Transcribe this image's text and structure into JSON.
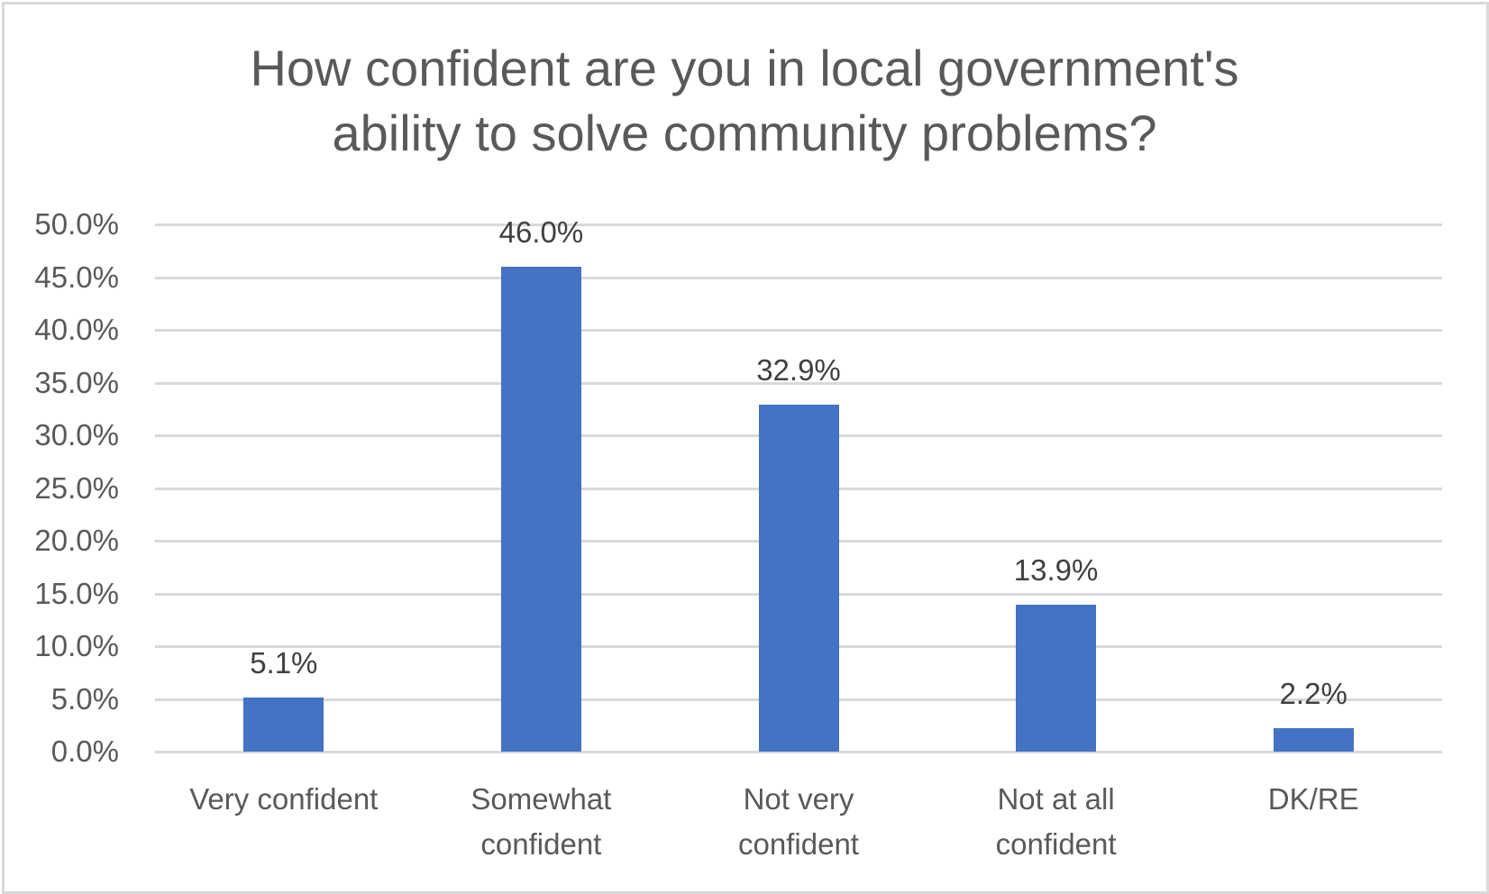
{
  "chart_data": {
    "type": "bar",
    "title": "How confident are you in local government's ability to solve community problems?",
    "title_lines": [
      "How confident are you in local government's",
      "ability to solve community problems?"
    ],
    "categories": [
      "Very confident",
      "Somewhat confident",
      "Not very confident",
      "Not at all confident",
      "DK/RE"
    ],
    "category_lines": [
      [
        "Very confident"
      ],
      [
        "Somewhat",
        "confident"
      ],
      [
        "Not very",
        "confident"
      ],
      [
        "Not at all",
        "confident"
      ],
      [
        "DK/RE"
      ]
    ],
    "values": [
      5.1,
      46.0,
      32.9,
      13.9,
      2.2
    ],
    "data_labels": [
      "5.1%",
      "46.0%",
      "32.9%",
      "13.9%",
      "2.2%"
    ],
    "xlabel": "",
    "ylabel": "",
    "ylim": [
      0,
      50
    ],
    "yticks": [
      0,
      5,
      10,
      15,
      20,
      25,
      30,
      35,
      40,
      45,
      50
    ],
    "ytick_labels": [
      "0.0%",
      "5.0%",
      "10.0%",
      "15.0%",
      "20.0%",
      "25.0%",
      "30.0%",
      "35.0%",
      "40.0%",
      "45.0%",
      "50.0%"
    ],
    "grid": true,
    "legend": "none",
    "colors": {
      "bar": "#4472C4",
      "grid": "#D9D9D9",
      "text": "#595959",
      "data_label": "#404040"
    }
  }
}
